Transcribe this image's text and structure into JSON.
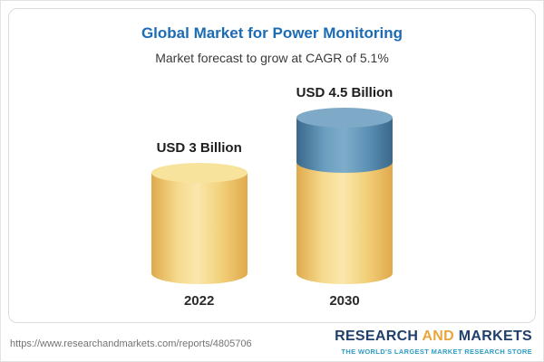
{
  "chart_data": {
    "type": "bar",
    "title": "Global Market for Power Monitoring",
    "subtitle": "Market forecast to grow at CAGR of 5.1%",
    "unit": "USD Billion",
    "categories": [
      "2022",
      "2030"
    ],
    "values": [
      3,
      4.5
    ],
    "value_labels": [
      "USD 3 Billion",
      "USD 4.5 Billion"
    ],
    "cagr_percent": 5.1,
    "bars": [
      {
        "category": "2022",
        "label": "USD 3 Billion",
        "segments": [
          {
            "name": "base",
            "color": "#F2CD68",
            "value": 3
          }
        ]
      },
      {
        "category": "2030",
        "label": "USD 4.5 Billion",
        "segments": [
          {
            "name": "base",
            "color": "#F2CD68",
            "value": 3
          },
          {
            "name": "growth",
            "color": "#5A8FB4",
            "value": 1.5
          }
        ]
      }
    ],
    "legend": false,
    "grid": false,
    "colors": {
      "bar_yellow": "#F2CD68",
      "bar_blue": "#5A8FB4",
      "title_blue": "#1B6CB5"
    }
  },
  "footer": {
    "url": "https://www.researchandmarkets.com/reports/4805706",
    "logo": {
      "research": "RESEARCH",
      "and": "AND",
      "markets": "MARKETS",
      "tagline": "THE WORLD'S LARGEST MARKET RESEARCH STORE"
    }
  }
}
